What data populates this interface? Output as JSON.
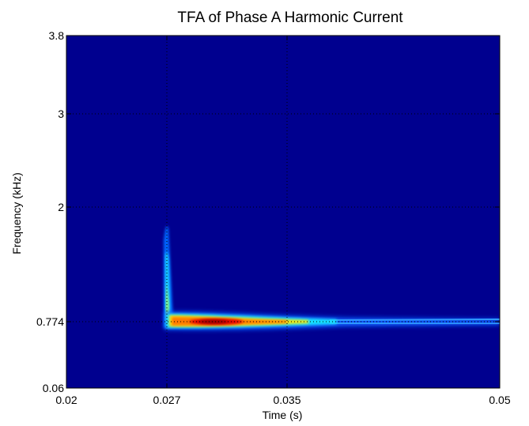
{
  "chart_data": {
    "type": "heatmap",
    "title": "TFA of Phase A Harmonic Current",
    "xlabel": "Time (s)",
    "ylabel": "Frequency (kHz)",
    "xlim": [
      0.02,
      0.05
    ],
    "ylim": [
      0.06,
      3.8
    ],
    "x_ticks": [
      {
        "value": 0.02,
        "label": "0.02"
      },
      {
        "value": 0.027,
        "label": "0.027"
      },
      {
        "value": 0.035,
        "label": "0.035"
      },
      {
        "value": 0.05,
        "label": "0.05"
      }
    ],
    "y_ticks": [
      {
        "value": 0.06,
        "label": "0.06"
      },
      {
        "value": 0.774,
        "label": "0.774"
      },
      {
        "value": 2,
        "label": "2"
      },
      {
        "value": 3,
        "label": "3"
      },
      {
        "value": 3.8,
        "label": "3.8"
      }
    ],
    "grid": true,
    "grid_style": "dotted",
    "colormap": "jet",
    "background_color": "#00008f",
    "features": [
      {
        "name": "harmonic ridge",
        "time_start": 0.027,
        "time_end": 0.05,
        "frequency": 0.774,
        "peak_time": 0.0305,
        "peak_intensity": 1.0
      },
      {
        "name": "transient onset",
        "time": 0.027,
        "frequency_range": [
          0.7,
          1.85
        ],
        "intensity": 0.45
      }
    ]
  }
}
